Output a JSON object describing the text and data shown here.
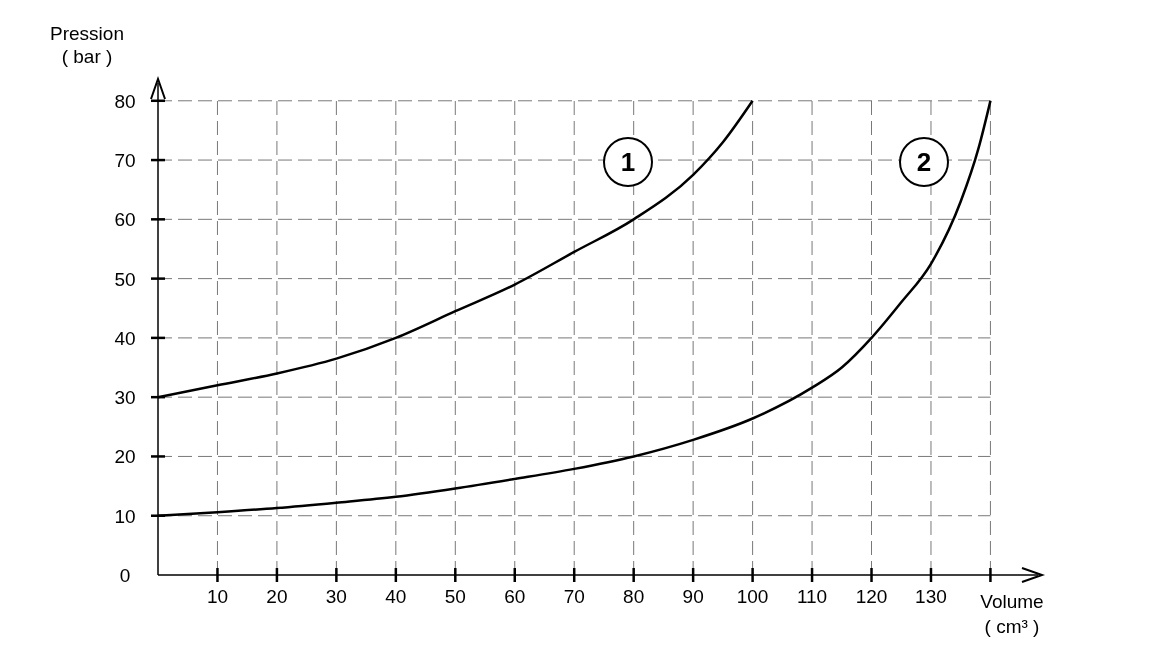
{
  "chart_data": {
    "type": "line",
    "xlabel": "Volume\n( cm³ )",
    "ylabel": "Pression\n( bar )",
    "xlim": [
      0,
      148
    ],
    "ylim": [
      0,
      83
    ],
    "xticks": [
      10,
      20,
      30,
      40,
      50,
      60,
      70,
      80,
      90,
      100,
      110,
      120,
      130,
      {
        "value": 140,
        "label": null
      }
    ],
    "yticks": [
      0,
      10,
      20,
      30,
      40,
      50,
      60,
      70,
      80
    ],
    "grid": true,
    "line_style": "solid",
    "marker": "none",
    "series": [
      {
        "color": "#000000",
        "x": [
          0,
          10,
          20,
          30,
          40,
          50,
          60,
          70,
          80,
          90,
          95,
          100
        ],
        "values": [
          30,
          32,
          34,
          36.5,
          40,
          44.5,
          49,
          54.5,
          60,
          67.5,
          73,
          80
        ]
      },
      {
        "color": "#000000",
        "x": [
          0,
          10,
          20,
          30,
          40,
          50,
          60,
          70,
          80,
          90,
          100,
          110,
          115,
          120,
          125,
          130,
          135,
          138,
          140
        ],
        "values": [
          10,
          10.6,
          11.3,
          12.2,
          13.2,
          14.6,
          16.2,
          17.9,
          20,
          22.8,
          26.4,
          31.6,
          35,
          40,
          46,
          52.5,
          63,
          72,
          80
        ]
      }
    ],
    "annotations": [
      "1",
      "2"
    ]
  }
}
